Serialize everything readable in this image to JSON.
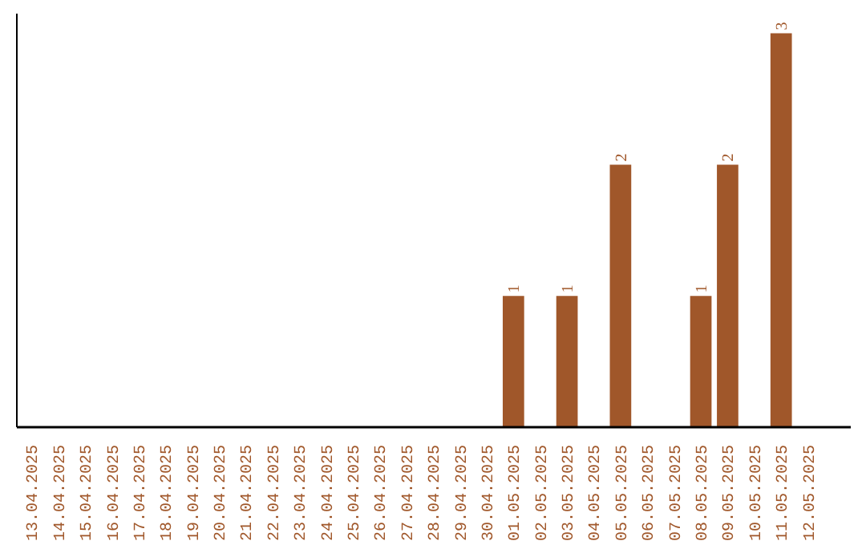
{
  "chart_data": {
    "type": "bar",
    "data_labels": true,
    "categories": [
      "13.04.2025",
      "14.04.2025",
      "15.04.2025",
      "16.04.2025",
      "17.04.2025",
      "18.04.2025",
      "19.04.2025",
      "20.04.2025",
      "21.04.2025",
      "22.04.2025",
      "23.04.2025",
      "24.04.2025",
      "25.04.2025",
      "26.04.2025",
      "27.04.2025",
      "28.04.2025",
      "29.04.2025",
      "30.04.2025",
      "01.05.2025",
      "02.05.2025",
      "03.05.2025",
      "04.05.2025",
      "05.05.2025",
      "06.05.2025",
      "07.05.2025",
      "08.05.2025",
      "09.05.2025",
      "10.05.2025",
      "11.05.2025",
      "12.05.2025"
    ],
    "values": [
      null,
      null,
      null,
      null,
      null,
      null,
      null,
      null,
      null,
      null,
      null,
      null,
      null,
      null,
      null,
      null,
      null,
      null,
      1,
      null,
      1,
      null,
      2,
      null,
      null,
      1,
      2,
      null,
      3,
      null
    ],
    "color": "#a0572a",
    "grid": false
  }
}
